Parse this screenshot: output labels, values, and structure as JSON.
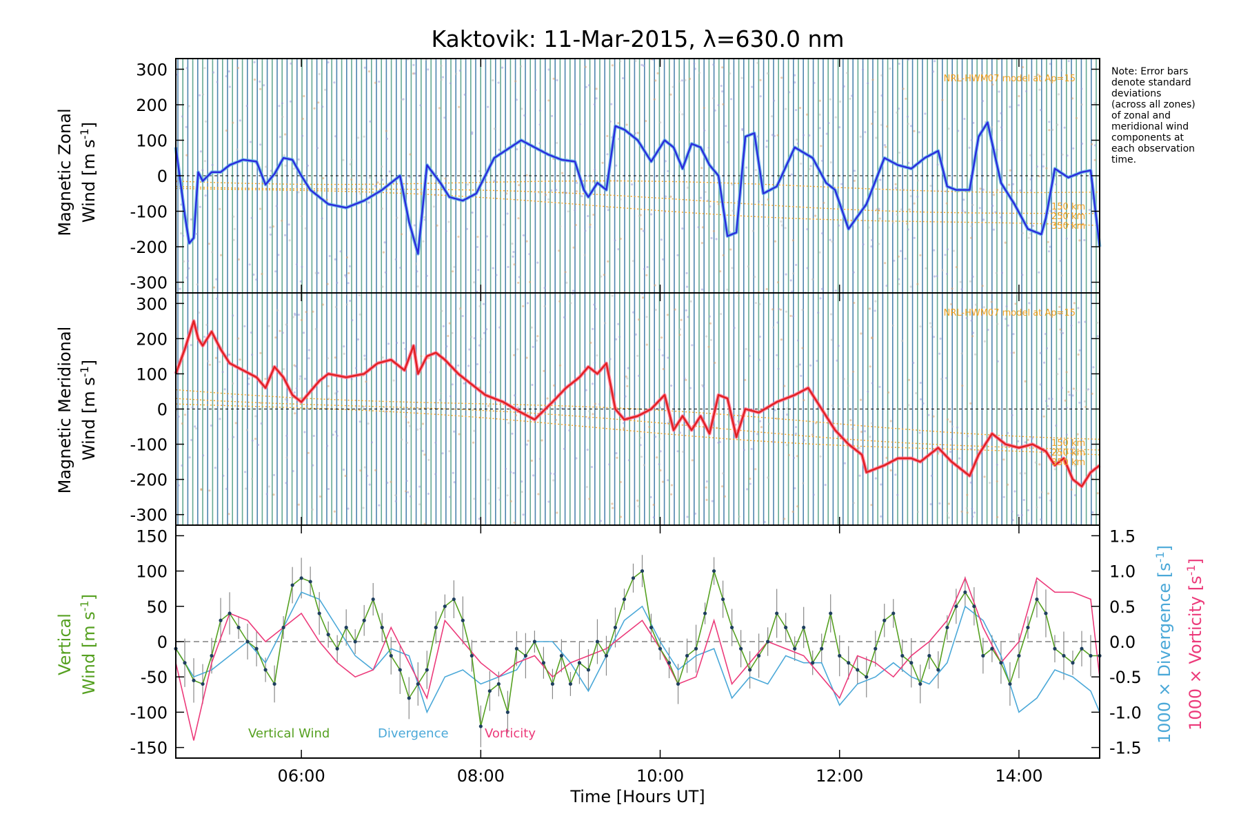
{
  "title": "Kaktovik: 11-Mar-2015, λ=630.0 nm",
  "note": [
    "Note: Error bars",
    "denote standard",
    "deviations",
    "(across all zones)",
    "of zonal and",
    "meridional wind",
    "components at",
    "each observation",
    "time."
  ],
  "colors": {
    "zonal": "#2a2adc",
    "zonal_light": "#5fb0e8",
    "meridional": "#e02020",
    "meridional_light": "#ff6688",
    "vertical": "#55a020",
    "divergence": "#4aa8d8",
    "vorticity": "#ec3a7a",
    "model": "#f0a020",
    "errorbar_blue": "#2f6fa0",
    "errorbar_green": "#4a9a80",
    "vertical_error": "#888888"
  },
  "x_axis": {
    "label": "Time [Hours UT]",
    "range_hours": [
      4.6,
      14.9
    ],
    "ticks": [
      {
        "v": 6,
        "label": "06:00"
      },
      {
        "v": 8,
        "label": "08:00"
      },
      {
        "v": 10,
        "label": "10:00"
      },
      {
        "v": 12,
        "label": "12:00"
      },
      {
        "v": 14,
        "label": "14:00"
      }
    ]
  },
  "panels": {
    "zonal": {
      "ylabel_line1": "Magnetic Zonal",
      "ylabel_line2": "Wind [m s",
      "ylabel_sup": "-1",
      "ylabel_end": "]",
      "ylim": [
        -330,
        330
      ],
      "ticks": [
        300,
        200,
        100,
        0,
        -100,
        -200,
        -300
      ],
      "model_label": "NRL-HWM07 model at Ap=15",
      "alt_labels": [
        "150 km",
        "250 km",
        "350 km"
      ]
    },
    "meridional": {
      "ylabel_line1": "Magnetic Meridional",
      "ylabel_line2": "Wind [m s",
      "ylabel_sup": "-1",
      "ylabel_end": "]",
      "ylim": [
        -330,
        330
      ],
      "ticks": [
        300,
        200,
        100,
        0,
        -100,
        -200,
        -300
      ],
      "model_label": "NRL-HWM07 model at Ap=15",
      "alt_labels": [
        "150 km",
        "250 km",
        "350 km"
      ]
    },
    "vertical": {
      "ylabel_line1": "Vertical",
      "ylabel_line2": "Wind [m s",
      "ylabel_sup": "-1",
      "ylabel_end": "]",
      "ylim": [
        -165,
        165
      ],
      "ticks": [
        150,
        100,
        50,
        0,
        -50,
        -100,
        -150
      ],
      "right_ticks": [
        "1.5",
        "1.0",
        "0.5",
        "0.0",
        "-0.5",
        "-1.0",
        "-1.5"
      ],
      "right_label_div": "1000 × Divergence [s",
      "right_label_vort": "1000 × Vorticity [s",
      "right_label_sup": "-1",
      "right_label_end": "]",
      "legend": {
        "vertical": "Vertical Wind",
        "divergence": "Divergence",
        "vorticity": "Vorticity"
      }
    }
  },
  "chart_data": {
    "type": "line",
    "title": "Kaktovik: 11-Mar-2015, λ=630.0 nm",
    "xlabel": "Time [Hours UT]",
    "xlim": [
      4.6,
      14.9
    ],
    "series": [
      {
        "name": "Magnetic Zonal Wind",
        "unit": "m s-1",
        "ylim": [
          -330,
          330
        ],
        "x": [
          4.6,
          4.7,
          4.75,
          4.8,
          4.85,
          4.9,
          5.0,
          5.1,
          5.2,
          5.35,
          5.5,
          5.6,
          5.7,
          5.8,
          5.9,
          6.0,
          6.1,
          6.3,
          6.5,
          6.7,
          6.9,
          7.1,
          7.2,
          7.3,
          7.4,
          7.55,
          7.65,
          7.8,
          7.95,
          8.15,
          8.3,
          8.45,
          8.6,
          8.75,
          8.9,
          9.05,
          9.15,
          9.2,
          9.3,
          9.4,
          9.5,
          9.6,
          9.75,
          9.9,
          10.05,
          10.15,
          10.25,
          10.35,
          10.45,
          10.55,
          10.65,
          10.75,
          10.85,
          10.95,
          11.05,
          11.15,
          11.3,
          11.5,
          11.7,
          11.85,
          11.95,
          12.1,
          12.3,
          12.5,
          12.65,
          12.8,
          12.95,
          13.1,
          13.2,
          13.3,
          13.45,
          13.55,
          13.65,
          13.8,
          13.95,
          14.1,
          14.25,
          14.3,
          14.4,
          14.55,
          14.7,
          14.8,
          14.9
        ],
        "y": [
          80,
          -110,
          -190,
          -175,
          10,
          -15,
          10,
          10,
          30,
          45,
          40,
          -25,
          5,
          50,
          45,
          0,
          -40,
          -80,
          -90,
          -70,
          -40,
          0,
          -130,
          -220,
          30,
          -20,
          -60,
          -70,
          -50,
          50,
          75,
          100,
          80,
          60,
          45,
          40,
          -40,
          -60,
          -20,
          -40,
          140,
          130,
          100,
          40,
          100,
          80,
          20,
          90,
          80,
          30,
          0,
          -170,
          -160,
          110,
          120,
          -50,
          -30,
          80,
          50,
          -20,
          -40,
          -150,
          -80,
          50,
          30,
          20,
          50,
          70,
          -30,
          -40,
          -40,
          110,
          150,
          -20,
          -80,
          -150,
          -165,
          -120,
          20,
          -5,
          10,
          15,
          -200
        ]
      },
      {
        "name": "Magnetic Meridional Wind",
        "unit": "m s-1",
        "ylim": [
          -330,
          330
        ],
        "x": [
          4.6,
          4.7,
          4.8,
          4.85,
          4.9,
          5.0,
          5.1,
          5.2,
          5.35,
          5.5,
          5.6,
          5.7,
          5.8,
          5.9,
          6.0,
          6.1,
          6.2,
          6.3,
          6.5,
          6.7,
          6.85,
          7.0,
          7.15,
          7.25,
          7.3,
          7.4,
          7.5,
          7.6,
          7.75,
          7.9,
          8.05,
          8.25,
          8.45,
          8.6,
          8.8,
          8.95,
          9.1,
          9.2,
          9.3,
          9.4,
          9.5,
          9.6,
          9.75,
          9.9,
          10.05,
          10.15,
          10.25,
          10.35,
          10.45,
          10.55,
          10.65,
          10.75,
          10.85,
          10.95,
          11.1,
          11.3,
          11.5,
          11.65,
          11.8,
          11.95,
          12.1,
          12.25,
          12.3,
          12.5,
          12.65,
          12.8,
          12.9,
          13.1,
          13.25,
          13.45,
          13.55,
          13.7,
          13.85,
          14.0,
          14.15,
          14.3,
          14.4,
          14.5,
          14.6,
          14.7,
          14.8,
          14.9
        ],
        "y": [
          100,
          170,
          250,
          200,
          180,
          220,
          170,
          130,
          110,
          90,
          60,
          120,
          90,
          40,
          20,
          50,
          80,
          100,
          90,
          100,
          130,
          140,
          110,
          180,
          100,
          150,
          160,
          140,
          100,
          70,
          40,
          20,
          -10,
          -30,
          20,
          60,
          90,
          120,
          100,
          130,
          0,
          -30,
          -20,
          0,
          40,
          -60,
          -20,
          -60,
          -20,
          -70,
          40,
          30,
          -80,
          0,
          -10,
          20,
          40,
          60,
          0,
          -60,
          -100,
          -130,
          -180,
          -160,
          -140,
          -140,
          -150,
          -110,
          -150,
          -190,
          -130,
          -70,
          -100,
          -110,
          -100,
          -120,
          -160,
          -140,
          -200,
          -220,
          -180,
          -160
        ]
      },
      {
        "name": "Vertical Wind",
        "unit": "m s-1",
        "ylim": [
          -165,
          165
        ],
        "x": [
          4.6,
          4.7,
          4.8,
          4.9,
          5.0,
          5.1,
          5.2,
          5.3,
          5.4,
          5.5,
          5.6,
          5.7,
          5.8,
          5.9,
          6.0,
          6.1,
          6.2,
          6.3,
          6.4,
          6.5,
          6.6,
          6.7,
          6.8,
          6.9,
          7.0,
          7.1,
          7.2,
          7.3,
          7.4,
          7.5,
          7.6,
          7.7,
          7.8,
          7.9,
          8.0,
          8.1,
          8.2,
          8.3,
          8.4,
          8.5,
          8.6,
          8.7,
          8.8,
          8.9,
          9.0,
          9.1,
          9.2,
          9.3,
          9.4,
          9.5,
          9.6,
          9.7,
          9.8,
          9.9,
          10.0,
          10.1,
          10.2,
          10.3,
          10.4,
          10.5,
          10.6,
          10.7,
          10.8,
          10.9,
          11.0,
          11.1,
          11.2,
          11.3,
          11.4,
          11.5,
          11.6,
          11.7,
          11.8,
          11.9,
          12.0,
          12.1,
          12.2,
          12.3,
          12.4,
          12.5,
          12.6,
          12.7,
          12.8,
          12.9,
          13.0,
          13.1,
          13.2,
          13.3,
          13.4,
          13.5,
          13.6,
          13.7,
          13.8,
          13.9,
          14.0,
          14.1,
          14.2,
          14.3,
          14.4,
          14.5,
          14.6,
          14.7,
          14.8,
          14.9
        ],
        "y": [
          -10,
          -30,
          -55,
          -60,
          -20,
          30,
          40,
          20,
          0,
          -10,
          -40,
          -60,
          20,
          80,
          90,
          85,
          40,
          10,
          -10,
          20,
          0,
          30,
          60,
          20,
          -20,
          -40,
          -80,
          -60,
          -40,
          20,
          50,
          60,
          30,
          -20,
          -120,
          -70,
          -60,
          -100,
          -10,
          -20,
          0,
          -30,
          -60,
          -20,
          -60,
          -30,
          -40,
          0,
          -20,
          20,
          60,
          90,
          100,
          20,
          -10,
          -30,
          -60,
          -20,
          -10,
          40,
          100,
          60,
          20,
          -10,
          -40,
          -20,
          0,
          40,
          20,
          -10,
          20,
          -30,
          -10,
          40,
          -20,
          -30,
          -40,
          -50,
          -10,
          30,
          40,
          -20,
          -30,
          -60,
          -20,
          -40,
          20,
          50,
          70,
          50,
          -20,
          -10,
          -30,
          -60,
          -20,
          20,
          60,
          40,
          -10,
          -20,
          -30,
          -10,
          -20,
          -20
        ]
      },
      {
        "name": "Divergence",
        "unit": "1000 × s-1",
        "ylim": [
          -1.5,
          1.5
        ],
        "x": [
          4.6,
          4.8,
          5.0,
          5.2,
          5.4,
          5.6,
          5.8,
          6.0,
          6.2,
          6.4,
          6.6,
          6.8,
          7.0,
          7.2,
          7.4,
          7.6,
          7.8,
          8.0,
          8.2,
          8.4,
          8.6,
          8.8,
          9.0,
          9.2,
          9.4,
          9.6,
          9.8,
          10.0,
          10.2,
          10.4,
          10.6,
          10.8,
          11.0,
          11.2,
          11.4,
          11.6,
          11.8,
          12.0,
          12.2,
          12.4,
          12.6,
          12.8,
          13.0,
          13.2,
          13.4,
          13.6,
          13.8,
          14.0,
          14.2,
          14.4,
          14.6,
          14.8,
          14.9
        ],
        "y": [
          -0.1,
          -0.5,
          -0.4,
          -0.2,
          0.0,
          -0.3,
          0.2,
          0.7,
          0.6,
          0.2,
          -0.2,
          -0.4,
          -0.1,
          -0.2,
          -1.0,
          -0.5,
          -0.4,
          -0.6,
          -0.5,
          -0.4,
          0.0,
          0.0,
          -0.3,
          -0.7,
          -0.2,
          0.3,
          0.5,
          0.0,
          -0.4,
          -0.2,
          -0.1,
          -0.8,
          -0.5,
          -0.6,
          -0.2,
          -0.3,
          -0.3,
          -0.9,
          -0.6,
          -0.5,
          -0.3,
          -0.5,
          -0.6,
          -0.3,
          0.5,
          0.3,
          -0.2,
          -1.0,
          -0.8,
          -0.4,
          -0.5,
          -0.7,
          -1.0
        ]
      },
      {
        "name": "Vorticity",
        "unit": "1000 × s-1",
        "ylim": [
          -1.5,
          1.5
        ],
        "x": [
          4.6,
          4.8,
          5.0,
          5.2,
          5.4,
          5.6,
          5.8,
          6.0,
          6.2,
          6.4,
          6.6,
          6.8,
          7.0,
          7.2,
          7.4,
          7.6,
          7.8,
          8.0,
          8.2,
          8.4,
          8.6,
          8.8,
          9.0,
          9.2,
          9.4,
          9.6,
          9.8,
          10.0,
          10.2,
          10.4,
          10.6,
          10.8,
          11.0,
          11.2,
          11.4,
          11.6,
          11.8,
          12.0,
          12.2,
          12.4,
          12.6,
          12.8,
          13.0,
          13.2,
          13.4,
          13.6,
          13.8,
          14.0,
          14.2,
          14.4,
          14.6,
          14.8,
          14.9
        ],
        "y": [
          -0.3,
          -1.4,
          -0.3,
          0.4,
          0.3,
          0.0,
          0.2,
          0.4,
          0.0,
          -0.3,
          -0.5,
          -0.4,
          0.2,
          -0.3,
          -0.8,
          0.3,
          0.0,
          -0.3,
          -0.5,
          -0.3,
          -0.2,
          -0.5,
          -0.3,
          -0.2,
          -0.1,
          0.1,
          0.3,
          -0.1,
          -0.6,
          -0.5,
          0.3,
          -0.6,
          -0.3,
          0.0,
          -0.1,
          -0.2,
          -0.5,
          -0.8,
          -0.2,
          -0.3,
          -0.5,
          -0.2,
          0.0,
          0.3,
          0.9,
          0.2,
          -0.3,
          0.0,
          0.9,
          0.7,
          0.7,
          0.6,
          -0.5
        ]
      }
    ]
  }
}
